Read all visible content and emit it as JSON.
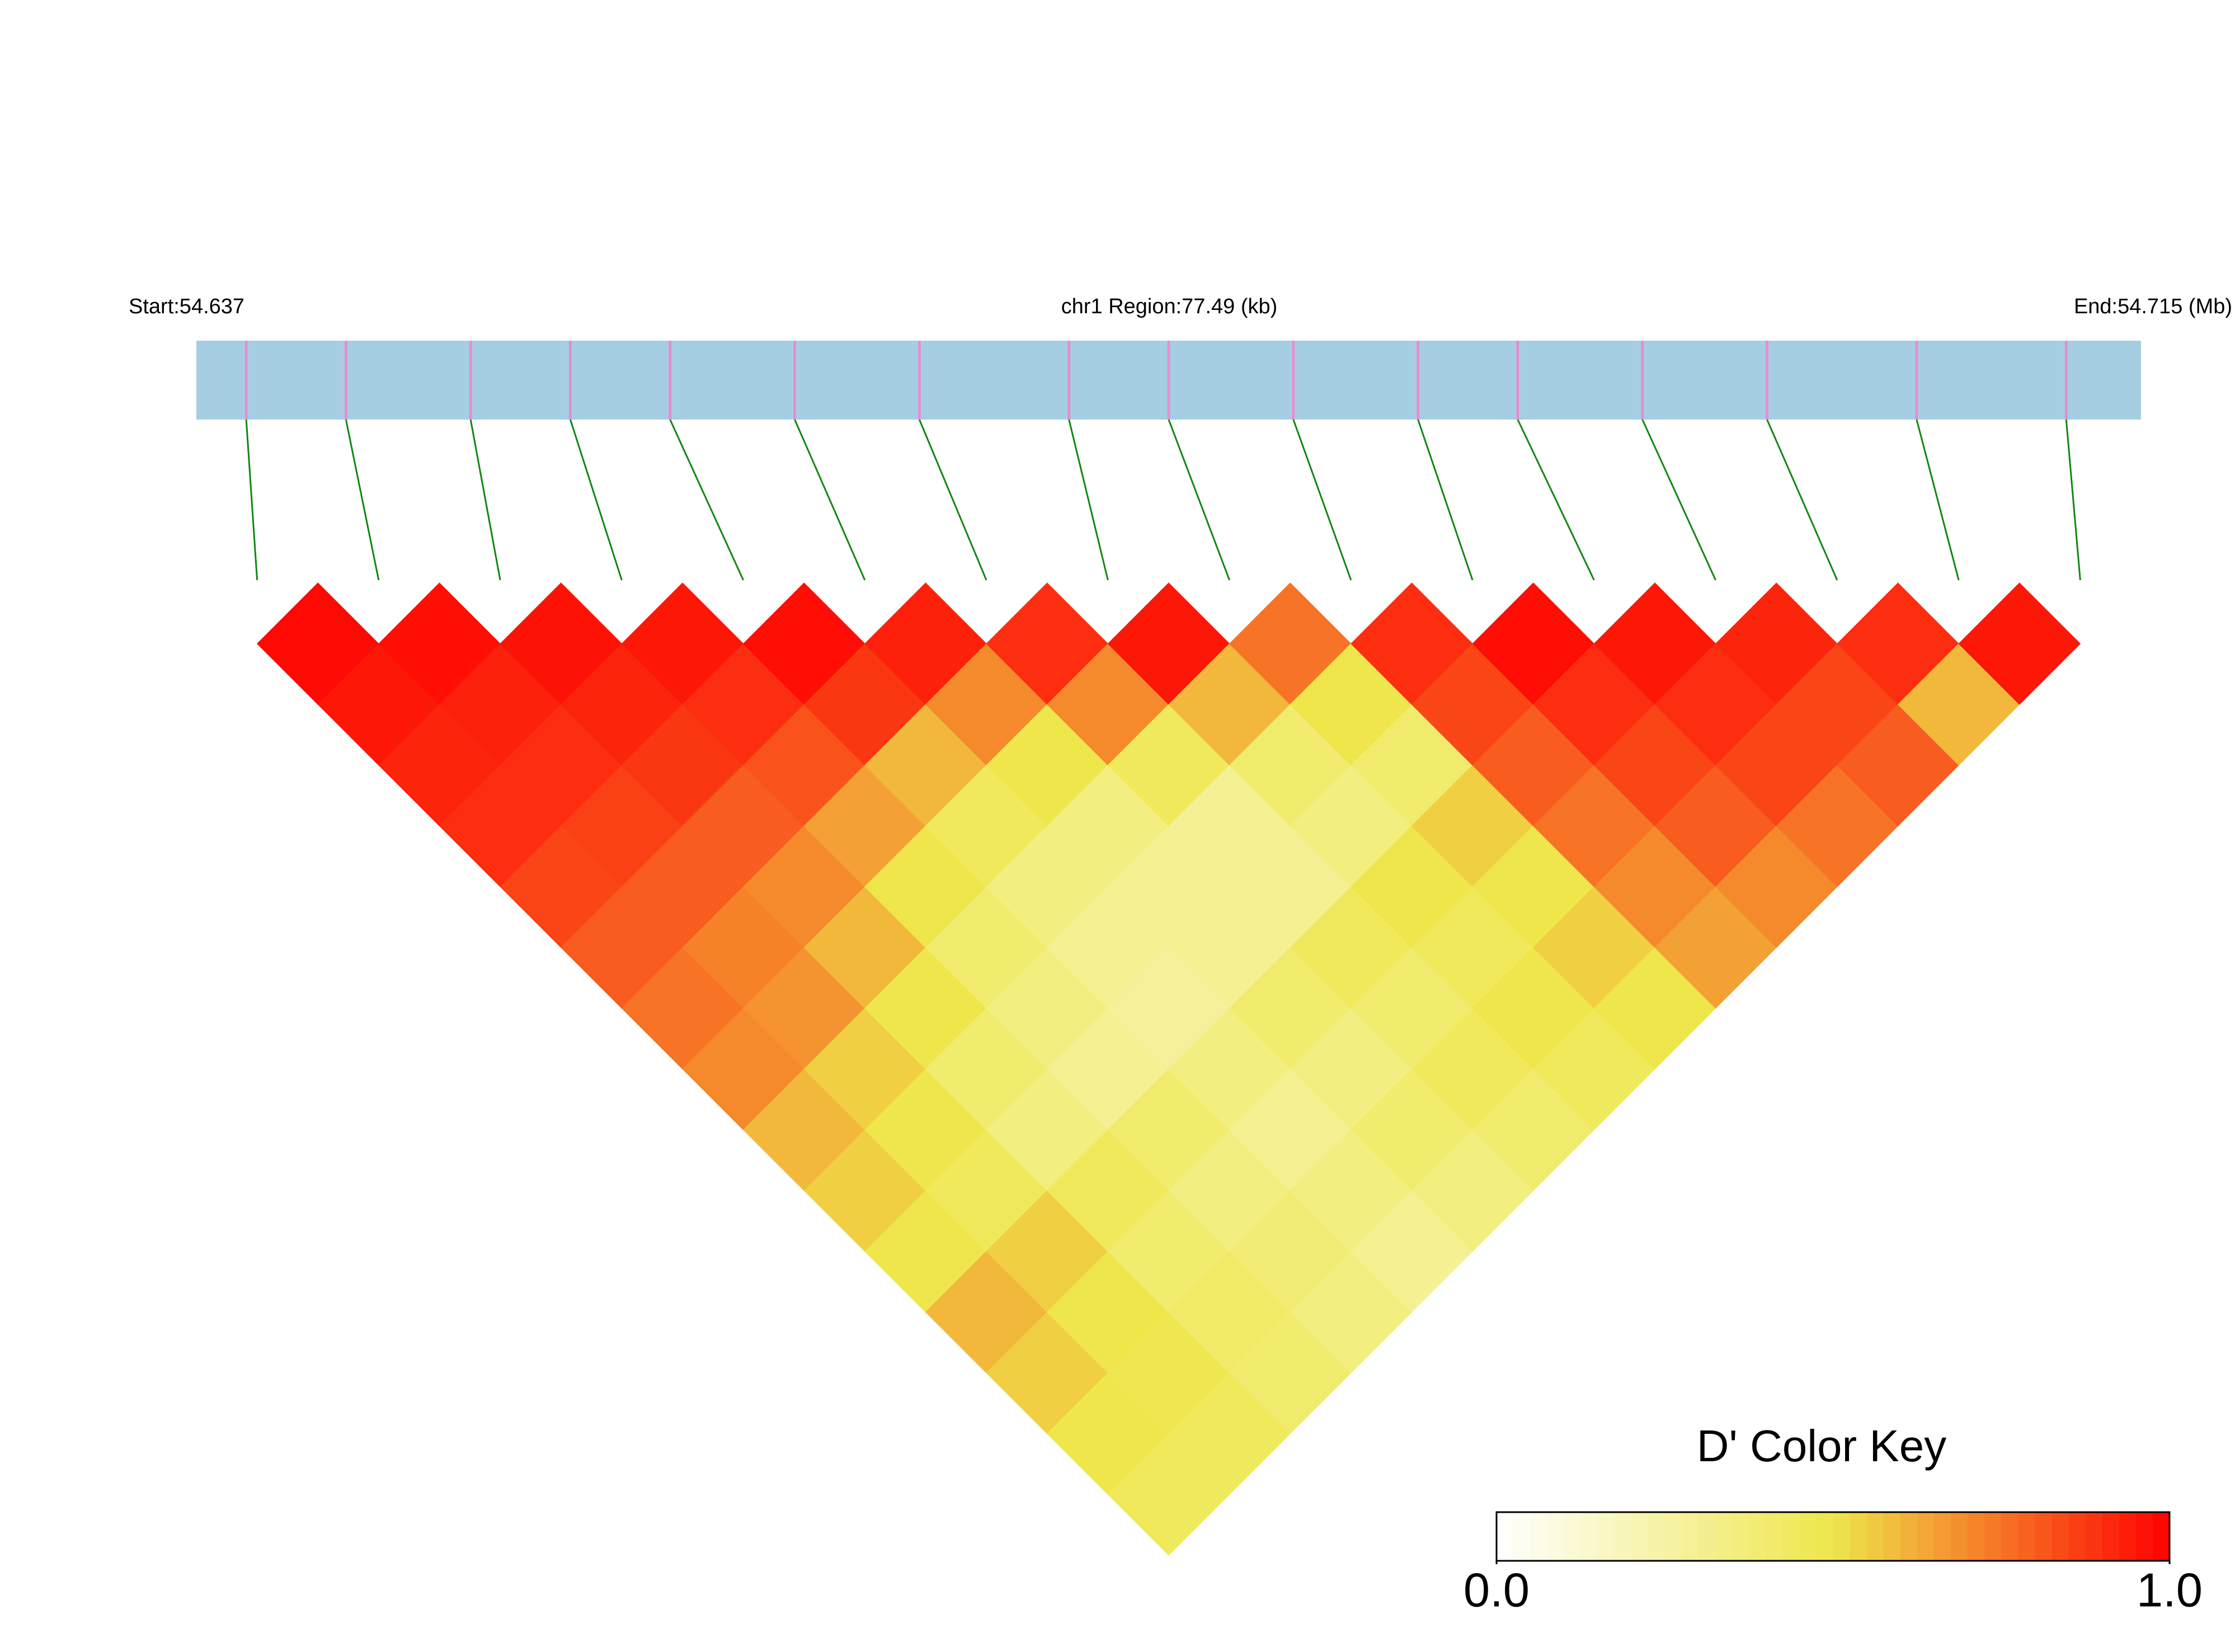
{
  "chart_data": {
    "type": "ld-heatmap",
    "start_label": "Start:54.637",
    "region_label": "chr1 Region:77.49 (kb)",
    "end_label": "End:54.715 (Mb)",
    "xlim": [
      54.637,
      54.715
    ],
    "positions": [
      54.639,
      54.643,
      54.648,
      54.652,
      54.656,
      54.661,
      54.666,
      54.672,
      54.676,
      54.681,
      54.686,
      54.69,
      54.695,
      54.7,
      54.706,
      54.712
    ],
    "ld": [
      [
        0.98,
        0.95,
        0.92,
        0.9,
        0.85,
        0.8,
        0.75,
        0.7,
        0.6,
        0.55,
        0.5,
        0.6,
        0.55,
        0.5,
        0.45
      ],
      [
        0.97,
        0.93,
        0.9,
        0.86,
        0.8,
        0.72,
        0.68,
        0.55,
        0.5,
        0.45,
        0.55,
        0.5,
        0.48,
        0.45
      ],
      [
        0.96,
        0.92,
        0.88,
        0.8,
        0.7,
        0.6,
        0.5,
        0.4,
        0.35,
        0.45,
        0.4,
        0.42,
        0.4
      ],
      [
        0.95,
        0.9,
        0.82,
        0.65,
        0.5,
        0.4,
        0.35,
        0.3,
        0.4,
        0.35,
        0.38,
        0.35
      ],
      [
        0.97,
        0.88,
        0.6,
        0.45,
        0.35,
        0.3,
        0.28,
        0.35,
        0.3,
        0.35,
        0.3
      ],
      [
        0.93,
        0.7,
        0.5,
        0.35,
        0.3,
        0.3,
        0.4,
        0.35,
        0.4,
        0.35
      ],
      [
        0.9,
        0.7,
        0.45,
        0.3,
        0.3,
        0.45,
        0.4,
        0.45,
        0.4
      ],
      [
        0.95,
        0.6,
        0.4,
        0.35,
        0.5,
        0.45,
        0.5,
        0.45
      ],
      [
        0.75,
        0.5,
        0.4,
        0.55,
        0.5,
        0.55,
        0.5
      ],
      [
        0.9,
        0.85,
        0.8,
        0.75,
        0.7,
        0.65
      ],
      [
        0.97,
        0.9,
        0.85,
        0.8,
        0.7
      ],
      [
        0.95,
        0.9,
        0.85,
        0.75
      ],
      [
        0.92,
        0.85,
        0.8
      ],
      [
        0.9,
        0.6
      ],
      [
        0.95
      ]
    ],
    "bar_color": "#a6cee3",
    "marker_color": "#e58fd0",
    "link_color": "#118811",
    "colorscale": [
      "#ffffff",
      "#eee64a",
      "#ff0000"
    ],
    "colorkey": {
      "title": "D' Color Key",
      "lim": [
        0,
        1
      ],
      "ticks": [
        {
          "value": 0,
          "label": "0.0"
        },
        {
          "value": 1,
          "label": "1.0"
        }
      ]
    }
  }
}
